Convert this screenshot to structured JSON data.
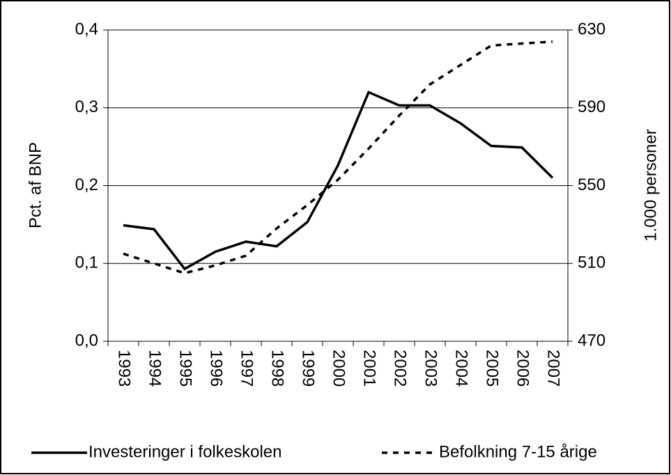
{
  "chart_data": {
    "type": "line",
    "categories": [
      "1993",
      "1994",
      "1995",
      "1996",
      "1997",
      "1998",
      "1999",
      "2000",
      "2001",
      "2002",
      "2003",
      "2004",
      "2005",
      "2006",
      "2007"
    ],
    "ylabel": "Pct. af BNP",
    "y2label": "1.000 personer",
    "ylim": [
      0,
      0.4
    ],
    "yticks": [
      {
        "value": 0,
        "label": "0,0"
      },
      {
        "value": 0.1,
        "label": "0,1"
      },
      {
        "value": 0.2,
        "label": "0,2"
      },
      {
        "value": 0.3,
        "label": "0,3"
      },
      {
        "value": 0.4,
        "label": "0,4"
      }
    ],
    "y2lim": [
      470,
      630
    ],
    "y2ticks": [
      470,
      510,
      550,
      590,
      630
    ],
    "grid": true,
    "legend": "bottom",
    "series": [
      {
        "name": "Investeringer i folkeskolen",
        "color": "#000000",
        "dash": "solid",
        "values": [
          0.149,
          0.144,
          0.093,
          0.115,
          0.128,
          0.122,
          0.153,
          0.226,
          0.32,
          0.303,
          0.303,
          0.28,
          0.251,
          0.249,
          0.21
        ]
      },
      {
        "name": "Befolkning 7-15 årige",
        "color": "#000000",
        "dash": "dashed",
        "axis": "y2",
        "values": [
          515,
          510,
          505,
          509,
          514,
          528,
          540,
          553,
          569,
          586,
          602,
          612,
          622,
          623,
          624
        ]
      }
    ]
  }
}
